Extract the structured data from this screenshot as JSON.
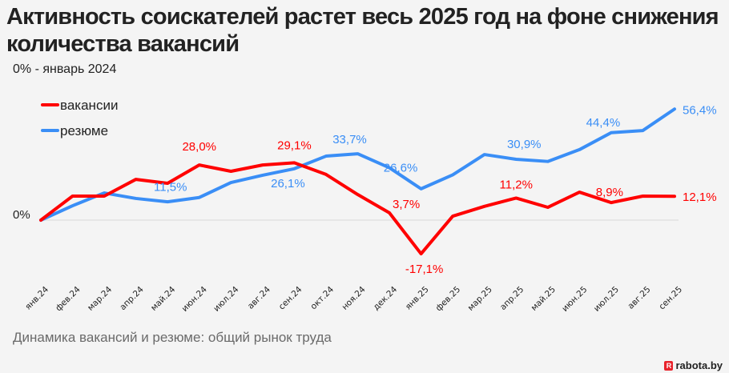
{
  "header": {
    "title": "Активность соискателей растет весь 2025 год на фоне снижения количества вакансий",
    "subtitle": "0% - январь 2024"
  },
  "footer": {
    "caption": "Динамика вакансий и резюме: общий рынок труда",
    "logo_mark": "R",
    "logo_text": "rabota.by"
  },
  "chart_data": {
    "type": "line",
    "title": "Активность соискателей растет весь 2025 год на фоне снижения количества вакансий",
    "subtitle": "0% - январь 2024",
    "xlabel": "",
    "ylabel": "",
    "grid": false,
    "legend_position": "top-left",
    "baseline_label": "0%",
    "ylim": [
      -25,
      60
    ],
    "categories": [
      "янв.24",
      "фев.24",
      "мар.24",
      "апр.24",
      "май.24",
      "июн.24",
      "июл.24",
      "авг.24",
      "сен.24",
      "окт.24",
      "ноя.24",
      "дек.24",
      "янв.25",
      "фев.25",
      "мар.25",
      "апр.25",
      "май.25",
      "июн.25",
      "июл.25",
      "авг.25",
      "сен.25"
    ],
    "series": [
      {
        "name": "вакансии",
        "color": "#ff0000",
        "values": [
          0,
          12.2,
          12.2,
          20.7,
          18.7,
          28.0,
          24.8,
          28.0,
          29.1,
          23.2,
          13.0,
          3.7,
          -17.1,
          2.0,
          7.0,
          11.2,
          6.5,
          14.2,
          8.9,
          12.2,
          12.1
        ],
        "labels": [
          {
            "index": 5,
            "text": "28,0%"
          },
          {
            "index": 8,
            "text": "29,1%"
          },
          {
            "index": 11,
            "text": "3,7%"
          },
          {
            "index": 12,
            "text": "-17,1%"
          },
          {
            "index": 15,
            "text": "11,2%"
          },
          {
            "index": 18,
            "text": "8,9%"
          },
          {
            "index": 20,
            "text": "12,1%"
          }
        ]
      },
      {
        "name": "резюме",
        "color": "#3a8ef6",
        "values": [
          0,
          7.3,
          13.8,
          11.0,
          9.3,
          11.5,
          19.1,
          22.8,
          26.1,
          32.5,
          33.7,
          26.6,
          15.9,
          23.0,
          33.3,
          30.9,
          29.8,
          35.8,
          44.4,
          45.5,
          56.4
        ],
        "labels": [
          {
            "index": 5,
            "text": "11,5%"
          },
          {
            "index": 8,
            "text": "26,1%"
          },
          {
            "index": 10,
            "text": "33,7%"
          },
          {
            "index": 11,
            "text": "26,6%"
          },
          {
            "index": 15,
            "text": "30,9%"
          },
          {
            "index": 18,
            "text": "44,4%"
          },
          {
            "index": 20,
            "text": "56,4%"
          }
        ]
      }
    ]
  }
}
